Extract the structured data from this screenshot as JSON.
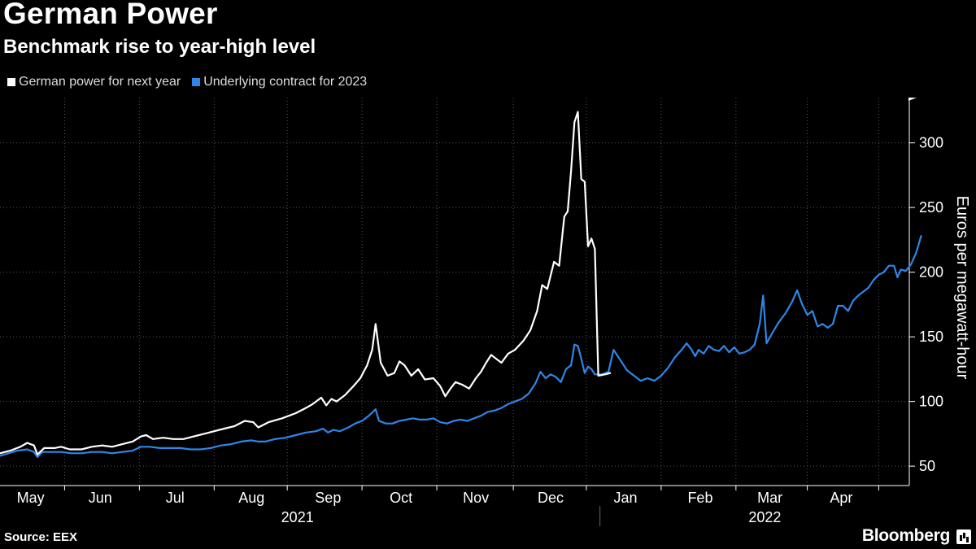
{
  "header": {
    "title": "German Power",
    "subtitle": "Benchmark rise to year-high level"
  },
  "footer": {
    "source": "Source: EEX",
    "brand": "Bloomberg"
  },
  "colors": {
    "background": "#000000",
    "series_white": "#ffffff",
    "series_blue": "#2f86e8",
    "grid": "#555555"
  },
  "chart_data": {
    "type": "line",
    "title": "German Power",
    "subtitle": "Benchmark rise to year-high level",
    "ylabel": "Euros per megawatt-hour",
    "ylim": [
      35,
      335
    ],
    "yticks": [
      50,
      100,
      150,
      200,
      250,
      300
    ],
    "grid": true,
    "legend_position": "top-left",
    "x_unit": "weeks since 2021-05-01",
    "xlim": [
      0,
      53.5
    ],
    "month_labels": [
      {
        "label": "May",
        "x": 1.8
      },
      {
        "label": "Jun",
        "x": 5.9
      },
      {
        "label": "Jul",
        "x": 10.3
      },
      {
        "label": "Aug",
        "x": 14.8
      },
      {
        "label": "Sep",
        "x": 19.3
      },
      {
        "label": "Oct",
        "x": 23.6
      },
      {
        "label": "Nov",
        "x": 28.0
      },
      {
        "label": "Dec",
        "x": 32.4
      },
      {
        "label": "Jan",
        "x": 36.8
      },
      {
        "label": "Feb",
        "x": 41.2
      },
      {
        "label": "Mar",
        "x": 45.3
      },
      {
        "label": "Apr",
        "x": 49.5
      }
    ],
    "month_boundaries": [
      3.8,
      8.2,
      12.6,
      16.9,
      21.3,
      25.7,
      30.2,
      34.5,
      38.9,
      43.3,
      47.5,
      51.7
    ],
    "year_labels": [
      {
        "label": "2021",
        "x": 17.5
      },
      {
        "label": "2022",
        "x": 45.0
      }
    ],
    "year_boundary": 35.3,
    "series": [
      {
        "name": "German power for next year",
        "color": "#ffffff",
        "points": [
          [
            0,
            60
          ],
          [
            0.6,
            62
          ],
          [
            1.2,
            65
          ],
          [
            1.6,
            68
          ],
          [
            2.0,
            66
          ],
          [
            2.2,
            59
          ],
          [
            2.6,
            64
          ],
          [
            3.2,
            64
          ],
          [
            3.6,
            65
          ],
          [
            4.1,
            63
          ],
          [
            4.8,
            63
          ],
          [
            5.4,
            65
          ],
          [
            6.0,
            66
          ],
          [
            6.6,
            65
          ],
          [
            7.2,
            67
          ],
          [
            7.8,
            69
          ],
          [
            8.3,
            73
          ],
          [
            8.6,
            74
          ],
          [
            9.0,
            71
          ],
          [
            9.6,
            72
          ],
          [
            10.2,
            71
          ],
          [
            10.8,
            71
          ],
          [
            11.4,
            73
          ],
          [
            12.0,
            75
          ],
          [
            12.6,
            77
          ],
          [
            13.2,
            79
          ],
          [
            13.8,
            81
          ],
          [
            14.4,
            85
          ],
          [
            14.9,
            84
          ],
          [
            15.2,
            80
          ],
          [
            15.8,
            84
          ],
          [
            16.6,
            87
          ],
          [
            17.4,
            91
          ],
          [
            18.0,
            95
          ],
          [
            18.4,
            98
          ],
          [
            18.9,
            103
          ],
          [
            19.2,
            97
          ],
          [
            19.5,
            102
          ],
          [
            19.8,
            100
          ],
          [
            20.3,
            105
          ],
          [
            20.8,
            112
          ],
          [
            21.2,
            118
          ],
          [
            21.6,
            128
          ],
          [
            21.9,
            140
          ],
          [
            22.1,
            160
          ],
          [
            22.4,
            130
          ],
          [
            22.8,
            120
          ],
          [
            23.2,
            122
          ],
          [
            23.5,
            131
          ],
          [
            23.8,
            128
          ],
          [
            24.2,
            120
          ],
          [
            24.6,
            125
          ],
          [
            25.0,
            117
          ],
          [
            25.5,
            118
          ],
          [
            25.9,
            112
          ],
          [
            26.2,
            104
          ],
          [
            26.5,
            110
          ],
          [
            26.8,
            115
          ],
          [
            27.2,
            113
          ],
          [
            27.6,
            110
          ],
          [
            28.0,
            118
          ],
          [
            28.3,
            123
          ],
          [
            28.6,
            130
          ],
          [
            28.9,
            136
          ],
          [
            29.2,
            133
          ],
          [
            29.5,
            130
          ],
          [
            29.9,
            137
          ],
          [
            30.3,
            140
          ],
          [
            30.8,
            147
          ],
          [
            31.2,
            155
          ],
          [
            31.6,
            170
          ],
          [
            31.9,
            190
          ],
          [
            32.2,
            187
          ],
          [
            32.6,
            208
          ],
          [
            32.9,
            205
          ],
          [
            33.2,
            243
          ],
          [
            33.4,
            247
          ],
          [
            33.6,
            278
          ],
          [
            33.8,
            316
          ],
          [
            34.0,
            324
          ],
          [
            34.2,
            272
          ],
          [
            34.4,
            270
          ],
          [
            34.6,
            220
          ],
          [
            34.8,
            226
          ],
          [
            35.0,
            218
          ],
          [
            35.2,
            120
          ],
          [
            35.6,
            121
          ],
          [
            35.9,
            122
          ]
        ]
      },
      {
        "name": "Underlying contract for 2023",
        "color": "#2f86e8",
        "points": [
          [
            0,
            58
          ],
          [
            0.5,
            60
          ],
          [
            1.0,
            62
          ],
          [
            1.6,
            63
          ],
          [
            2.0,
            61
          ],
          [
            2.2,
            57
          ],
          [
            2.5,
            61
          ],
          [
            3.0,
            61
          ],
          [
            3.6,
            61
          ],
          [
            4.2,
            60
          ],
          [
            4.8,
            60
          ],
          [
            5.4,
            61
          ],
          [
            6.0,
            61
          ],
          [
            6.6,
            60
          ],
          [
            7.2,
            61
          ],
          [
            7.8,
            62
          ],
          [
            8.3,
            65
          ],
          [
            8.8,
            65
          ],
          [
            9.4,
            64
          ],
          [
            10.0,
            64
          ],
          [
            10.6,
            64
          ],
          [
            11.2,
            63
          ],
          [
            11.8,
            63
          ],
          [
            12.4,
            64
          ],
          [
            13.0,
            66
          ],
          [
            13.6,
            67
          ],
          [
            14.2,
            69
          ],
          [
            14.8,
            70
          ],
          [
            15.2,
            69
          ],
          [
            15.6,
            69
          ],
          [
            16.2,
            71
          ],
          [
            16.8,
            72
          ],
          [
            17.4,
            74
          ],
          [
            18.0,
            76
          ],
          [
            18.6,
            77
          ],
          [
            19.0,
            79
          ],
          [
            19.3,
            76
          ],
          [
            19.6,
            78
          ],
          [
            20.0,
            77
          ],
          [
            20.5,
            80
          ],
          [
            20.9,
            83
          ],
          [
            21.3,
            85
          ],
          [
            21.7,
            89
          ],
          [
            22.1,
            94
          ],
          [
            22.3,
            85
          ],
          [
            22.7,
            83
          ],
          [
            23.1,
            83
          ],
          [
            23.5,
            85
          ],
          [
            23.9,
            86
          ],
          [
            24.3,
            87
          ],
          [
            24.7,
            86
          ],
          [
            25.1,
            86
          ],
          [
            25.5,
            87
          ],
          [
            25.9,
            84
          ],
          [
            26.3,
            83
          ],
          [
            26.7,
            85
          ],
          [
            27.1,
            86
          ],
          [
            27.5,
            85
          ],
          [
            27.9,
            87
          ],
          [
            28.3,
            89
          ],
          [
            28.7,
            92
          ],
          [
            29.1,
            93
          ],
          [
            29.5,
            95
          ],
          [
            29.9,
            98
          ],
          [
            30.3,
            100
          ],
          [
            30.7,
            102
          ],
          [
            31.1,
            106
          ],
          [
            31.5,
            114
          ],
          [
            31.8,
            123
          ],
          [
            32.1,
            118
          ],
          [
            32.4,
            121
          ],
          [
            32.7,
            119
          ],
          [
            33.0,
            115
          ],
          [
            33.3,
            125
          ],
          [
            33.6,
            128
          ],
          [
            33.8,
            144
          ],
          [
            34.0,
            143
          ],
          [
            34.2,
            133
          ],
          [
            34.4,
            122
          ],
          [
            34.6,
            127
          ],
          [
            34.8,
            125
          ],
          [
            35.0,
            121
          ],
          [
            35.4,
            121
          ],
          [
            35.8,
            123
          ],
          [
            36.1,
            140
          ],
          [
            36.5,
            132
          ],
          [
            36.9,
            124
          ],
          [
            37.3,
            120
          ],
          [
            37.7,
            116
          ],
          [
            38.1,
            118
          ],
          [
            38.5,
            116
          ],
          [
            38.9,
            120
          ],
          [
            39.3,
            126
          ],
          [
            39.7,
            134
          ],
          [
            40.1,
            140
          ],
          [
            40.4,
            145
          ],
          [
            40.7,
            140
          ],
          [
            40.9,
            135
          ],
          [
            41.1,
            140
          ],
          [
            41.4,
            137
          ],
          [
            41.7,
            143
          ],
          [
            42.0,
            140
          ],
          [
            42.3,
            139
          ],
          [
            42.6,
            143
          ],
          [
            42.9,
            138
          ],
          [
            43.2,
            142
          ],
          [
            43.5,
            137
          ],
          [
            43.8,
            138
          ],
          [
            44.1,
            140
          ],
          [
            44.4,
            144
          ],
          [
            44.7,
            160
          ],
          [
            44.9,
            182
          ],
          [
            45.1,
            145
          ],
          [
            45.4,
            152
          ],
          [
            45.8,
            161
          ],
          [
            46.2,
            168
          ],
          [
            46.6,
            177
          ],
          [
            46.9,
            186
          ],
          [
            47.2,
            175
          ],
          [
            47.5,
            167
          ],
          [
            47.8,
            170
          ],
          [
            48.1,
            158
          ],
          [
            48.4,
            160
          ],
          [
            48.7,
            157
          ],
          [
            49.0,
            160
          ],
          [
            49.3,
            174
          ],
          [
            49.6,
            174
          ],
          [
            49.9,
            170
          ],
          [
            50.2,
            178
          ],
          [
            50.5,
            182
          ],
          [
            50.8,
            185
          ],
          [
            51.1,
            188
          ],
          [
            51.4,
            194
          ],
          [
            51.7,
            198
          ],
          [
            52.0,
            200
          ],
          [
            52.3,
            205
          ],
          [
            52.6,
            205
          ],
          [
            52.8,
            196
          ],
          [
            53.0,
            202
          ],
          [
            53.3,
            201
          ],
          [
            53.6,
            206
          ],
          [
            53.9,
            215
          ],
          [
            54.2,
            228
          ]
        ]
      }
    ]
  }
}
